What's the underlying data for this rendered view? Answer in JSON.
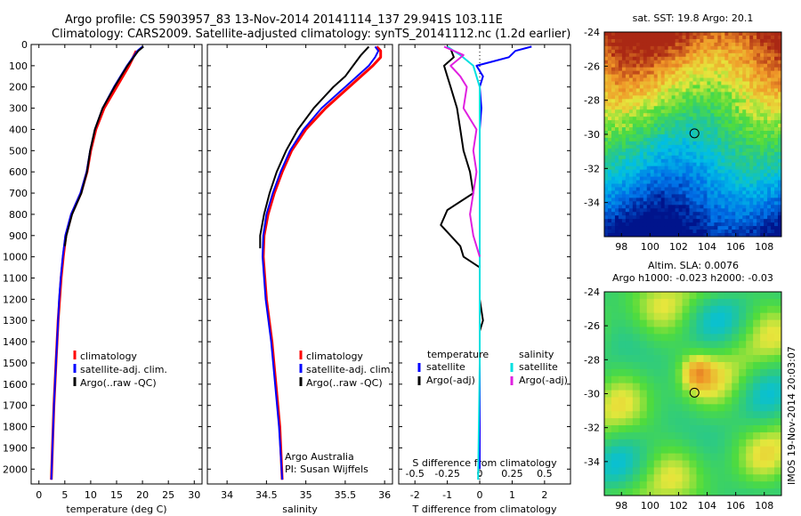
{
  "header": {
    "line1": "Argo profile: CS 5903957_83 13-Nov-2014 20141114_137 29.941S 103.11E",
    "line2": "Climatology: CARS2009. Satellite-adjusted climatology: synTS_20141112.nc (1.2d earlier)"
  },
  "side_text": "IMOS 19-Nov-2014 20:03:07",
  "chart_data": [
    {
      "id": "temperature",
      "type": "line",
      "xlabel": "temperature (deg C)",
      "ylabel": "",
      "xlim": [
        -1.5,
        31.5
      ],
      "ylim": [
        0,
        2070
      ],
      "y_inverted": true,
      "x_ticks": [
        0,
        5,
        10,
        15,
        20,
        25,
        30
      ],
      "y_ticks": [
        0,
        100,
        200,
        300,
        400,
        500,
        600,
        700,
        800,
        900,
        1000,
        1100,
        1200,
        1300,
        1400,
        1500,
        1600,
        1700,
        1800,
        1900,
        2000
      ],
      "legend": [
        "climatology",
        "satellite-adj. clim.",
        "Argo(..raw -QC)"
      ],
      "series": [
        {
          "color": "#ff0000",
          "depth": [
            30,
            100,
            200,
            300,
            400,
            500,
            600,
            700,
            800,
            900,
            1000,
            1100,
            1200,
            1300,
            1500,
            1700,
            1900,
            2050
          ],
          "x": [
            18.8,
            17.4,
            15.0,
            12.6,
            11.0,
            10.0,
            9.3,
            8.1,
            6.3,
            5.2,
            4.7,
            4.3,
            4.0,
            3.7,
            3.3,
            2.9,
            2.6,
            2.4
          ]
        },
        {
          "color": "#0000ff",
          "depth": [
            10,
            30,
            100,
            200,
            300,
            400,
            500,
            600,
            700,
            800,
            900,
            1000,
            1100,
            1200,
            1300,
            1500,
            1700,
            1900,
            2050
          ],
          "x": [
            20.0,
            19.0,
            17.0,
            14.5,
            12.3,
            10.8,
            9.9,
            9.2,
            8.0,
            6.2,
            5.1,
            4.6,
            4.2,
            3.9,
            3.7,
            3.3,
            2.9,
            2.6,
            2.4
          ]
        },
        {
          "color": "#000000",
          "depth": [
            10,
            30,
            100,
            200,
            300,
            400,
            500,
            600,
            700,
            800,
            900,
            950
          ],
          "x": [
            20.2,
            19.2,
            17.1,
            14.6,
            12.3,
            10.8,
            9.9,
            9.3,
            8.2,
            6.4,
            5.3,
            5.0
          ]
        }
      ]
    },
    {
      "id": "salinity",
      "type": "line",
      "xlabel": "salinity",
      "ylabel": "",
      "xlim": [
        33.75,
        36.1
      ],
      "ylim": [
        0,
        2070
      ],
      "y_inverted": true,
      "x_ticks": [
        34,
        34.5,
        35,
        35.5,
        36
      ],
      "legend": [
        "climatology",
        "satellite-adj. clim.",
        "Argo(..raw -QC)"
      ],
      "annotation": [
        "Argo Australia",
        "PI: Susan Wijffels"
      ],
      "series": [
        {
          "color": "#ff0000",
          "depth": [
            10,
            30,
            60,
            100,
            200,
            300,
            400,
            500,
            600,
            700,
            800,
            900,
            1000,
            1200,
            1400,
            1600,
            1800,
            2050
          ],
          "x": [
            35.9,
            35.95,
            35.95,
            35.85,
            35.55,
            35.25,
            35.0,
            34.82,
            34.7,
            34.6,
            34.52,
            34.47,
            34.46,
            34.5,
            34.57,
            34.62,
            34.67,
            34.7
          ]
        },
        {
          "color": "#0000ff",
          "depth": [
            10,
            30,
            60,
            100,
            200,
            300,
            400,
            500,
            600,
            700,
            800,
            900,
            1000,
            1200,
            1400,
            1600,
            1800,
            2050
          ],
          "x": [
            35.88,
            35.92,
            35.88,
            35.8,
            35.5,
            35.2,
            34.97,
            34.8,
            34.68,
            34.58,
            34.5,
            34.46,
            34.45,
            34.49,
            34.56,
            34.61,
            34.66,
            34.7
          ]
        },
        {
          "color": "#000000",
          "depth": [
            10,
            50,
            100,
            150,
            200,
            300,
            400,
            500,
            600,
            700,
            800,
            900,
            960
          ],
          "x": [
            35.8,
            35.7,
            35.6,
            35.5,
            35.35,
            35.1,
            34.9,
            34.75,
            34.63,
            34.54,
            34.47,
            34.42,
            34.42
          ]
        }
      ]
    },
    {
      "id": "difference",
      "type": "line",
      "xlabel": "T difference from climatology",
      "x2label": "S difference from climatology",
      "ylabel": "",
      "xlim": [
        -2.5,
        2.8
      ],
      "ylim": [
        0,
        2070
      ],
      "y_inverted": true,
      "x_ticks": [
        -2,
        -1,
        0,
        1,
        2
      ],
      "x2_ticks": [
        -0.5,
        -0.25,
        0,
        0.25,
        0.5
      ],
      "x2_scale": 4,
      "legend_temperature": [
        "temperature",
        "satellite",
        "Argo(-adj)"
      ],
      "legend_salinity": [
        "salinity",
        "satellite",
        "Argo(-adj)"
      ],
      "series": [
        {
          "color": "#0000ff",
          "depth": [
            10,
            30,
            60,
            80,
            100,
            150,
            200,
            300,
            400,
            600,
            800,
            1000,
            1200,
            2000
          ],
          "x": [
            1.6,
            1.1,
            0.9,
            0.4,
            -0.1,
            0.1,
            0.0,
            0.05,
            0.0,
            0.0,
            0.0,
            0.0,
            0.0,
            0.0
          ]
        },
        {
          "color": "#000000",
          "depth": [
            20,
            60,
            100,
            150,
            200,
            300,
            400,
            500,
            600,
            700,
            780,
            850,
            900,
            950,
            1000,
            1050,
            1200,
            1300,
            1350
          ],
          "x": [
            -0.9,
            -0.8,
            -1.1,
            -1.0,
            -0.9,
            -0.7,
            -0.6,
            -0.5,
            -0.3,
            -0.2,
            -1.0,
            -1.2,
            -0.9,
            -0.6,
            -0.5,
            0.0,
            0.0,
            0.1,
            0.0
          ]
        },
        {
          "color": "#00e0e0",
          "depth": [
            10,
            50,
            100,
            200,
            400,
            600,
            800,
            1000,
            1500,
            2050
          ],
          "x": [
            -1.0,
            -0.6,
            -0.2,
            0.0,
            0.0,
            0.0,
            0.0,
            0.0,
            0.0,
            -0.05
          ]
        },
        {
          "color": "#e020e0",
          "depth": [
            10,
            50,
            100,
            150,
            200,
            300,
            400,
            500,
            600,
            700,
            800,
            900,
            950,
            1000
          ],
          "x": [
            -1.1,
            -0.5,
            -0.9,
            -0.6,
            -0.4,
            -0.5,
            -0.1,
            -0.2,
            -0.1,
            -0.2,
            -0.3,
            -0.2,
            -0.1,
            0.0
          ]
        }
      ]
    },
    {
      "id": "sst-map",
      "type": "heatmap",
      "title": "sat. SST: 19.8  Argo: 20.1",
      "xlim": [
        96.8,
        109.2
      ],
      "ylim": [
        -36,
        -24
      ],
      "x_ticks": [
        98,
        100,
        102,
        104,
        106,
        108
      ],
      "y_ticks": [
        -24,
        -26,
        -28,
        -30,
        -32,
        -34
      ],
      "marker": {
        "lon": 103.11,
        "lat": -29.94
      }
    },
    {
      "id": "sla-map",
      "type": "heatmap",
      "title": [
        "Altim. SLA: 0.0076",
        "Argo h1000: -0.023 h2000: -0.03"
      ],
      "xlim": [
        96.8,
        109.2
      ],
      "ylim": [
        -36,
        -24
      ],
      "x_ticks": [
        98,
        100,
        102,
        104,
        106,
        108
      ],
      "y_ticks": [
        -24,
        -26,
        -28,
        -30,
        -32,
        -34
      ],
      "marker": {
        "lon": 103.11,
        "lat": -29.94
      }
    }
  ]
}
